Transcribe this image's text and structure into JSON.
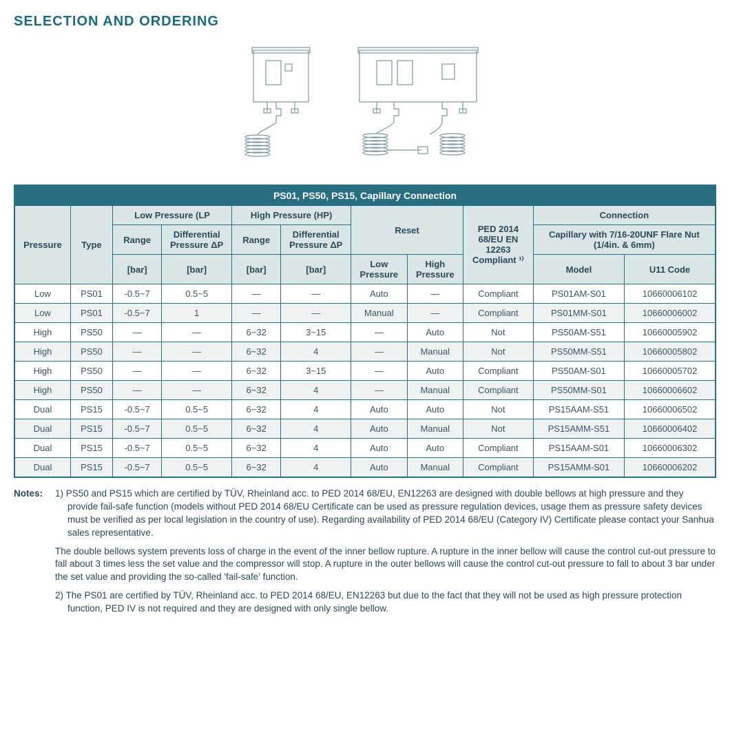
{
  "title": "SELECTION AND ORDERING",
  "table": {
    "title": "PS01, PS50, PS15, Capillary Connection",
    "headers": {
      "pressure": "Pressure",
      "type": "Type",
      "lp": "Low Pressure (LP",
      "hp": "High Pressure (HP)",
      "range": "Range",
      "diff": "Differential Pressure ΔP",
      "reset": "Reset",
      "ped": "PED 2014 68/EU EN 12263 Compliant ¹⁾",
      "connection": "Connection",
      "capillary": "Capillary with 7/16-20UNF Flare Nut (1/4in. & 6mm)",
      "bar": "[bar]",
      "low_pressure": "Low Pressure",
      "high_pressure": "High Pressure",
      "model": "Model",
      "u11": "U11 Code"
    },
    "rows": [
      {
        "pressure": "Low",
        "type": "PS01",
        "lp_range": "-0.5~7",
        "lp_dp": "0.5~5",
        "hp_range": "—",
        "hp_dp": "—",
        "reset_lp": "Auto",
        "reset_hp": "—",
        "ped": "Compliant",
        "model": "PS01AM-S01",
        "u11": "10660006102"
      },
      {
        "pressure": "Low",
        "type": "PS01",
        "lp_range": "-0.5~7",
        "lp_dp": "1",
        "hp_range": "—",
        "hp_dp": "—",
        "reset_lp": "Manual",
        "reset_hp": "—",
        "ped": "Compliant",
        "model": "PS01MM-S01",
        "u11": "10660006002"
      },
      {
        "pressure": "High",
        "type": "PS50",
        "lp_range": "—",
        "lp_dp": "—",
        "hp_range": "6~32",
        "hp_dp": "3~15",
        "reset_lp": "—",
        "reset_hp": "Auto",
        "ped": "Not",
        "model": "PS50AM-S51",
        "u11": "10660005902"
      },
      {
        "pressure": "High",
        "type": "PS50",
        "lp_range": "—",
        "lp_dp": "—",
        "hp_range": "6~32",
        "hp_dp": "4",
        "reset_lp": "—",
        "reset_hp": "Manual",
        "ped": "Not",
        "model": "PS50MM-S51",
        "u11": "10660005802"
      },
      {
        "pressure": "High",
        "type": "PS50",
        "lp_range": "—",
        "lp_dp": "—",
        "hp_range": "6~32",
        "hp_dp": "3~15",
        "reset_lp": "—",
        "reset_hp": "Auto",
        "ped": "Compliant",
        "model": "PS50AM-S01",
        "u11": "10660005702"
      },
      {
        "pressure": "High",
        "type": "PS50",
        "lp_range": "—",
        "lp_dp": "—",
        "hp_range": "6~32",
        "hp_dp": "4",
        "reset_lp": "—",
        "reset_hp": "Manual",
        "ped": "Compliant",
        "model": "PS50MM-S01",
        "u11": "10660006602"
      },
      {
        "pressure": "Dual",
        "type": "PS15",
        "lp_range": "-0.5~7",
        "lp_dp": "0.5~5",
        "hp_range": "6~32",
        "hp_dp": "4",
        "reset_lp": "Auto",
        "reset_hp": "Auto",
        "ped": "Not",
        "model": "PS15AAM-S51",
        "u11": "10660006502"
      },
      {
        "pressure": "Dual",
        "type": "PS15",
        "lp_range": "-0.5~7",
        "lp_dp": "0.5~5",
        "hp_range": "6~32",
        "hp_dp": "4",
        "reset_lp": "Auto",
        "reset_hp": "Manual",
        "ped": "Not",
        "model": "PS15AMM-S51",
        "u11": "10660006402"
      },
      {
        "pressure": "Dual",
        "type": "PS15",
        "lp_range": "-0.5~7",
        "lp_dp": "0.5~5",
        "hp_range": "6~32",
        "hp_dp": "4",
        "reset_lp": "Auto",
        "reset_hp": "Auto",
        "ped": "Compliant",
        "model": "PS15AAM-S01",
        "u11": "10660006302"
      },
      {
        "pressure": "Dual",
        "type": "PS15",
        "lp_range": "-0.5~7",
        "lp_dp": "0.5~5",
        "hp_range": "6~32",
        "hp_dp": "4",
        "reset_lp": "Auto",
        "reset_hp": "Manual",
        "ped": "Compliant",
        "model": "PS15AMM-S01",
        "u11": "10660006202"
      }
    ]
  },
  "notes": {
    "label": "Notes:",
    "items": [
      "1) PS50 and PS15 which are certified by TÜV, Rheinland acc. to PED 2014 68/EU, EN12263 are designed with double bellows at high pressure and they provide fail-safe function (models without PED 2014 68/EU Certificate can be used as pressure regulation devices, usage them as pressure safety devices must be verified as per local legislation in the country of use). Regarding availability of PED 2014 68/EU (Category IV) Certificate please contact your Sanhua sales representative.",
      "The double bellows system prevents loss of charge in the event of the inner bellow rupture. A rupture in the inner bellow will cause the control cut-out pressure to fall about 3 times less the set value and the compressor will stop. A rupture in the outer bellows will cause the control cut-out pressure to fall to about 3 bar under the set value and providing the so-called 'fail-safe' function.",
      "2) The PS01 are certified by TÜV, Rheinland acc. to PED 2014 68/EU, EN12263 but due to the fact that they will not be used as high pressure protection function, PED IV is not required and they are designed with only single bellow."
    ]
  },
  "style": {
    "accent": "#266e80",
    "header_bg": "#d9e5e7",
    "row_alt": "#eef2f3",
    "text": "#2a4a55"
  }
}
